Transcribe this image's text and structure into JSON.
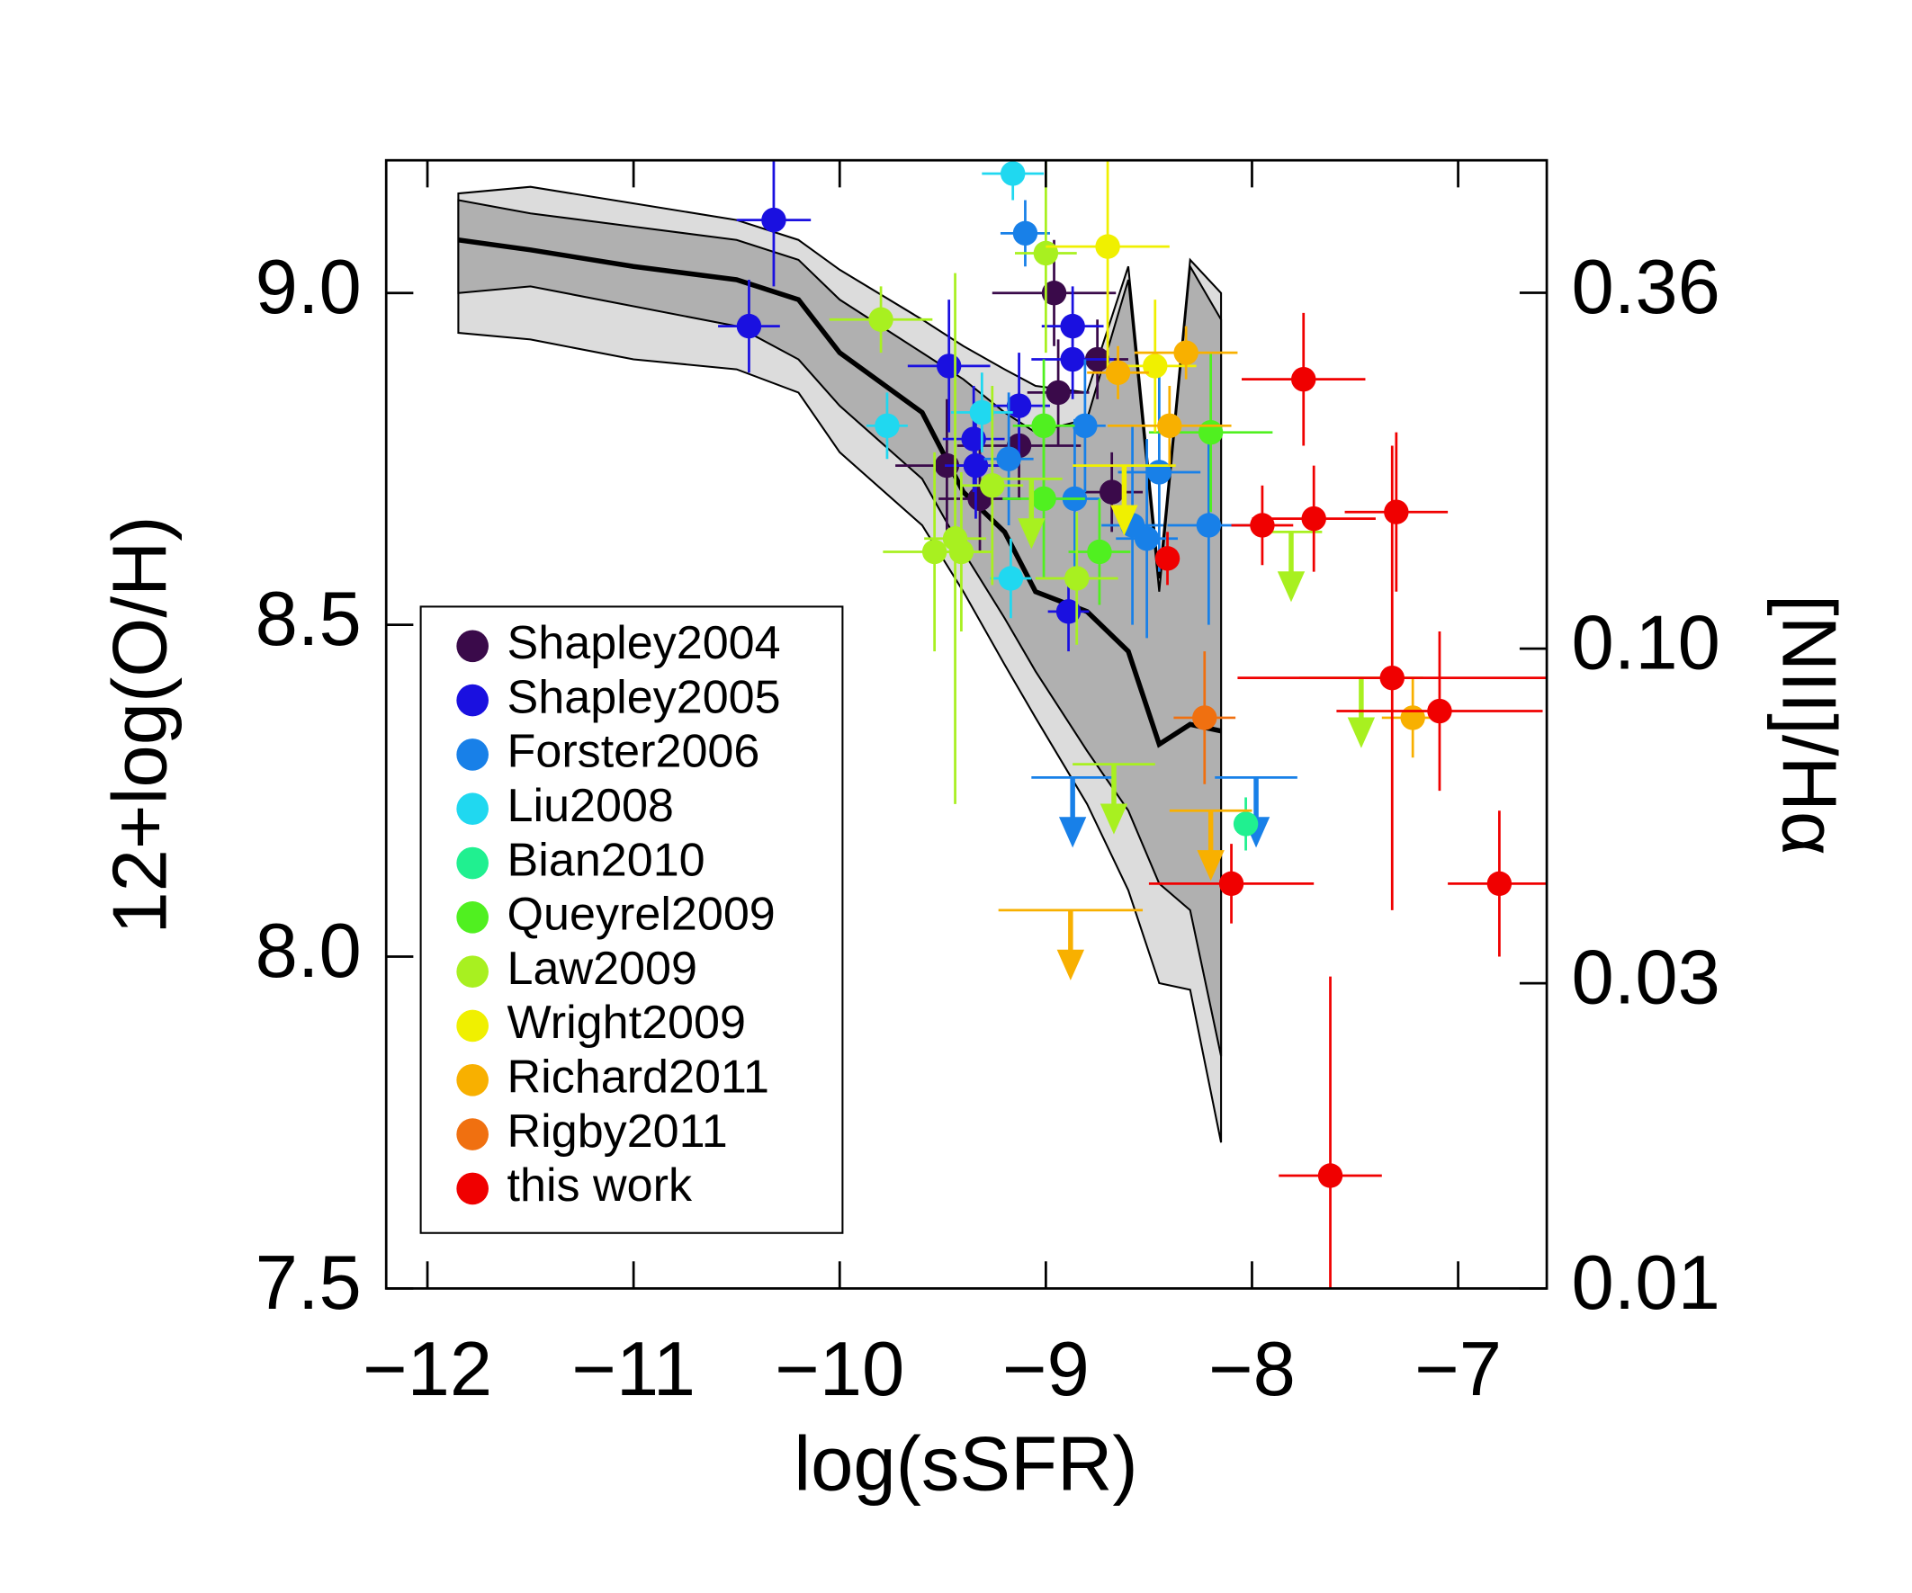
{
  "chart_data": {
    "type": "scatter",
    "x_label": "log(sSFR)",
    "y_label": "12+log(O/H)",
    "y2_label": "[NII]/Hα",
    "xlim": [
      -12.2,
      -6.57
    ],
    "ylim": [
      7.5,
      9.2
    ],
    "xticks": [
      {
        "value": -12,
        "label": "−12"
      },
      {
        "value": -11,
        "label": "−11"
      },
      {
        "value": -10,
        "label": "−10"
      },
      {
        "value": -9,
        "label": "−9"
      },
      {
        "value": -8,
        "label": "−8"
      },
      {
        "value": -7,
        "label": "−7"
      }
    ],
    "yticks": [
      {
        "value": 7.5,
        "label": "7.5"
      },
      {
        "value": 8,
        "label": "8.0"
      },
      8.5,
      {
        "value": 9,
        "label": "9.0"
      }
    ],
    "y2lim": [
      0.01,
      0.58
    ],
    "y2log": true,
    "y2ticks": [
      0.01,
      0.03,
      {
        "value": 0.1,
        "label": "0.10"
      },
      0.36
    ],
    "legend": "lower left",
    "bands": {
      "x": [
        -11.85,
        -11.5,
        -11,
        -10.5,
        -10.2,
        -10,
        -9.6,
        -9.4,
        -9.2,
        -9.05,
        -8.8,
        -8.6,
        -8.45,
        -8.3,
        -8.15
      ],
      "median": [
        9.08,
        9.065,
        9.04,
        9.02,
        8.99,
        8.91,
        8.82,
        8.7,
        8.64,
        8.55,
        8.52,
        8.46,
        8.32,
        8.35,
        8.34
      ],
      "inner_upper": [
        9.14,
        9.12,
        9.1,
        9.08,
        9.05,
        8.99,
        8.91,
        8.87,
        8.82,
        8.79,
        8.81,
        9.02,
        8.55,
        9.04,
        8.96
      ],
      "inner_lower": [
        9.0,
        9.01,
        8.98,
        8.95,
        8.9,
        8.83,
        8.72,
        8.61,
        8.51,
        8.43,
        8.31,
        8.22,
        8.11,
        8.07,
        7.85
      ],
      "outer_upper": [
        9.15,
        9.16,
        9.135,
        9.11,
        9.08,
        9.035,
        8.96,
        8.92,
        8.885,
        8.86,
        8.85,
        9.04,
        8.57,
        9.05,
        9.0
      ],
      "outer_lower": [
        8.94,
        8.93,
        8.9,
        8.885,
        8.85,
        8.76,
        8.65,
        8.55,
        8.44,
        8.36,
        8.23,
        8.1,
        7.96,
        7.95,
        7.72
      ]
    },
    "series": [
      {
        "name": "Shapley2004",
        "color": "#3a0a4a",
        "x": [
          -8.96,
          -8.94,
          -8.75,
          -9.13,
          -9.48,
          -9.32,
          -8.68
        ],
        "y": [
          9.0,
          8.85,
          8.9,
          8.77,
          8.74,
          8.69,
          8.7
        ],
        "xerr": [
          0.3,
          0.15,
          0.15,
          0.3,
          0.25,
          0.2,
          0.15
        ],
        "yerr": [
          0.08,
          0.08,
          0.06,
          0.08,
          0.1,
          0.08,
          0.06
        ]
      },
      {
        "name": "Shapley2005",
        "color": "#1a10e0",
        "x": [
          -10.32,
          -10.44,
          -9.47,
          -8.87,
          -8.87,
          -9.13,
          -9.35,
          -9.34,
          -8.89
        ],
        "y": [
          9.11,
          8.95,
          8.89,
          8.95,
          8.9,
          8.83,
          8.78,
          8.74,
          8.52
        ],
        "xerr": [
          0.18,
          0.15,
          0.2,
          0.15,
          0.2,
          0.15,
          0.15,
          0.15,
          0.1
        ],
        "yerr": [
          0.1,
          0.07,
          0.1,
          0.06,
          0.06,
          0.08,
          0.08,
          0.08,
          0.06
        ]
      },
      {
        "name": "Forster2006",
        "color": "#1880e8",
        "x": [
          -9.1,
          -8.81,
          -8.86,
          -9.18,
          -8.45,
          -8.58,
          -8.51,
          -8.21
        ],
        "y": [
          9.09,
          8.8,
          8.69,
          8.75,
          8.73,
          8.65,
          8.63,
          8.65
        ],
        "xerr": [
          0.12,
          0.1,
          0.12,
          0.12,
          0.2,
          0.15,
          0.15,
          0.2
        ],
        "yerr": [
          0.05,
          0.1,
          0.12,
          0.1,
          0.15,
          0.15,
          0.15,
          0.15
        ],
        "limits": {
          "x": [
            -8.87,
            -7.98
          ],
          "y": [
            8.27,
            8.27
          ],
          "xerr": [
            0.2,
            0.2
          ]
        }
      },
      {
        "name": "Liu2008",
        "color": "#20d8f0",
        "x": [
          -9.16,
          -9.77,
          -9.31,
          -9.17
        ],
        "y": [
          9.18,
          8.8,
          8.82,
          8.57
        ],
        "xerr": [
          0.15,
          0.1,
          0.15,
          0.1
        ],
        "yerr": [
          0.04,
          0.05,
          0.06,
          0.06
        ]
      },
      {
        "name": "Bian2010",
        "color": "#20f090",
        "x": [
          -8.03
        ],
        "y": [
          8.2
        ],
        "xerr": [
          0.05
        ],
        "yerr": [
          0.04
        ]
      },
      {
        "name": "Queyrel2009",
        "color": "#50f020",
        "x": [
          -9.01,
          -9.01,
          -8.2,
          -8.74
        ],
        "y": [
          8.8,
          8.69,
          8.79,
          8.61
        ],
        "xerr": [
          0.15,
          0.2,
          0.3,
          0.15
        ],
        "yerr": [
          0.1,
          0.12,
          0.12,
          0.08
        ]
      },
      {
        "name": "Law2009",
        "color": "#a8f020",
        "x": [
          -9.8,
          -9.54,
          -9.44,
          -9.41,
          -9.26,
          -9.0,
          -8.85
        ],
        "y": [
          8.96,
          8.61,
          8.63,
          8.61,
          8.71,
          9.06,
          8.57
        ],
        "xerr": [
          0.25,
          0.25,
          0.15,
          0.15,
          0.15,
          0.15,
          0.2
        ],
        "yerr": [
          0.05,
          0.15,
          0.4,
          0.12,
          0.15,
          0.15,
          0.1
        ],
        "limits": {
          "x": [
            -9.07,
            -8.67,
            -7.81,
            -7.47
          ],
          "y": [
            8.72,
            8.29,
            8.64,
            8.42
          ],
          "xerr": [
            0.15,
            0.2,
            0.15,
            0.3
          ]
        }
      },
      {
        "name": "Wright2009",
        "color": "#f0f000",
        "x": [
          -8.7,
          -8.47
        ],
        "y": [
          9.07,
          8.89
        ],
        "xerr": [
          0.3,
          0.2
        ],
        "yerr": [
          0.2,
          0.1
        ],
        "limits": {
          "x": [
            -8.62
          ],
          "y": [
            8.74
          ],
          "xerr": [
            0.25
          ]
        }
      },
      {
        "name": "Richard2011",
        "color": "#f8b000",
        "x": [
          -8.65,
          -8.32,
          -8.4,
          -7.22
        ],
        "y": [
          8.88,
          8.91,
          8.8,
          8.36
        ],
        "xerr": [
          0.15,
          0.25,
          0.3,
          0.15
        ],
        "yerr": [
          0.04,
          0.04,
          0.06,
          0.06
        ],
        "limits": {
          "x": [
            -8.88,
            -8.2
          ],
          "y": [
            8.07,
            8.22
          ],
          "xerr": [
            0.35,
            0.2
          ]
        }
      },
      {
        "name": "Rigby2011",
        "color": "#f07010",
        "x": [
          -8.23
        ],
        "y": [
          8.36
        ],
        "xerr": [
          0.15
        ],
        "yerr": [
          0.1
        ]
      },
      {
        "name": "this work",
        "color": "#f00000",
        "x": [
          -7.75,
          -7.95,
          -7.7,
          -7.3,
          -8.41,
          -7.32,
          -7.09,
          -8.1,
          -6.8,
          -7.62
        ],
        "y": [
          8.87,
          8.65,
          8.66,
          8.67,
          8.6,
          8.42,
          8.37,
          8.11,
          8.11,
          7.67
        ],
        "xerr": [
          0.3,
          0.15,
          0.3,
          0.25,
          0.05,
          0.75,
          0.5,
          0.4,
          0.25,
          0.25
        ],
        "yerr": [
          0.1,
          0.06,
          0.08,
          0.12,
          0.04,
          0.35,
          0.12,
          0.06,
          0.11,
          0.3
        ]
      }
    ]
  }
}
